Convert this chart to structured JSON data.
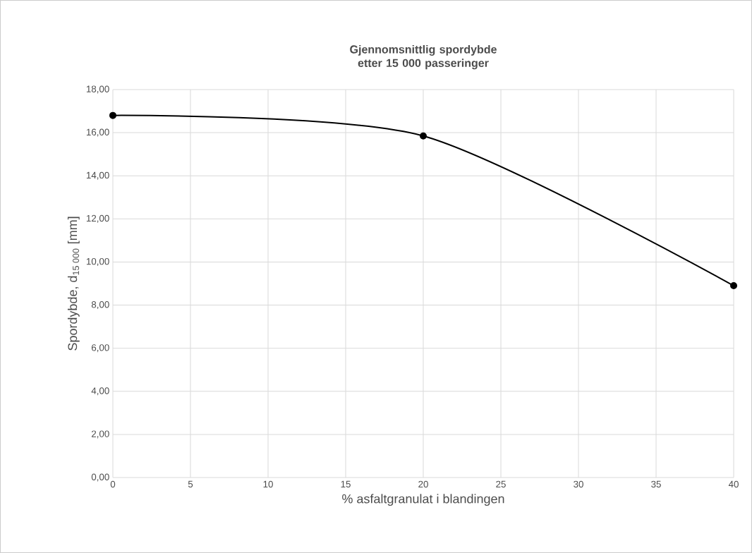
{
  "chart_data": {
    "type": "line",
    "title": "Gjennomsnittlig spordybde etter 15 000 passeringer",
    "xlabel": "% asfaltgranulat i blandingen",
    "ylabel": "Spordybde, d$_{15 000}$ [mm]",
    "x": [
      0,
      20,
      40
    ],
    "series": [
      {
        "color": "#000000",
        "values": [
          16.8,
          15.85,
          8.9
        ]
      }
    ],
    "xlim": [
      0,
      40
    ],
    "xticks": [
      0,
      5,
      10,
      15,
      20,
      25,
      30,
      35,
      40
    ],
    "ylim": [
      0,
      18
    ],
    "yticks": [
      {
        "value": 0,
        "label": "0,00"
      },
      {
        "value": 2,
        "label": "2,00"
      },
      {
        "value": 4,
        "label": "4,00"
      },
      {
        "value": 6,
        "label": "6,00"
      },
      {
        "value": 8,
        "label": "8,00"
      },
      {
        "value": 10,
        "label": "10,00"
      },
      {
        "value": 12,
        "label": "12,00"
      },
      {
        "value": 14,
        "label": "14,00"
      },
      {
        "value": 16,
        "label": "16,00"
      },
      {
        "value": 18,
        "label": "18,00"
      }
    ],
    "grid": true,
    "marker": "circle",
    "line_style": "solid"
  }
}
